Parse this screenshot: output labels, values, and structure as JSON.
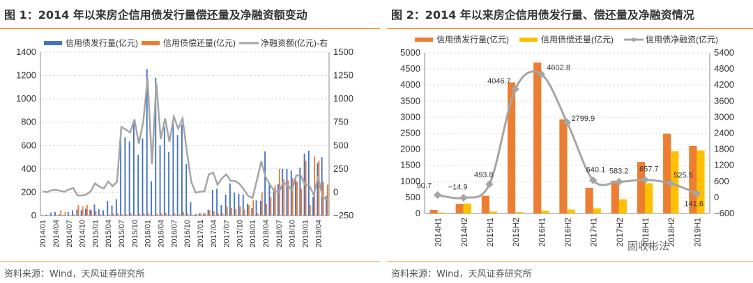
{
  "colors": {
    "issue1": "#4472c4",
    "repay1": "#ed7d31",
    "net": "#a5a5a5",
    "issue2": "#ed7d31",
    "repay2": "#ffc000",
    "accent": "#f0a050"
  },
  "watermark": "固收彬法",
  "chart_data": [
    {
      "type": "bar",
      "title": "图 1：2014 年以来房企信用债发行量偿还量及净融资额变动",
      "source": "资料来源：Wind，天风证券研究所",
      "tick_labels": [
        "2014/01",
        "2014/04",
        "2014/07",
        "2014/10",
        "2015/01",
        "2015/04",
        "2015/07",
        "2015/10",
        "2016/01",
        "2016/04",
        "2016/07",
        "2016/10",
        "2017/01",
        "2017/04",
        "2017/07",
        "2017/10",
        "2018/01",
        "2018/04",
        "2018/07",
        "2018/10",
        "2019/01",
        "2019/04"
      ],
      "start": "2014/01",
      "months": 66,
      "ylim": [
        0,
        1400
      ],
      "yticks": [
        0,
        200,
        400,
        600,
        800,
        1000,
        1200,
        1400
      ],
      "y2lim": [
        -250,
        1500
      ],
      "y2ticks": [
        -250,
        0,
        250,
        500,
        750,
        1000,
        1250,
        1500
      ],
      "series": [
        {
          "name": "信用债发行量(亿元)",
          "type": "bar",
          "axis": "left",
          "values": [
            5,
            8,
            25,
            30,
            10,
            5,
            30,
            45,
            50,
            45,
            60,
            50,
            95,
            55,
            45,
            125,
            85,
            140,
            690,
            670,
            635,
            800,
            520,
            660,
            1255,
            295,
            1180,
            600,
            760,
            545,
            790,
            690,
            780,
            440,
            115,
            10,
            20,
            20,
            50,
            220,
            230,
            90,
            180,
            275,
            195,
            185,
            180,
            100,
            65,
            130,
            125,
            550,
            280,
            230,
            270,
            400,
            400,
            385,
            330,
            410,
            530,
            555,
            160,
            450,
            500,
            170
          ]
        },
        {
          "name": "信用债偿还量(亿元)",
          "type": "bar",
          "axis": "left",
          "values": [
            0,
            0,
            0,
            5,
            45,
            30,
            0,
            10,
            90,
            80,
            90,
            45,
            35,
            10,
            5,
            10,
            20,
            20,
            10,
            10,
            20,
            5,
            15,
            20,
            20,
            5,
            15,
            20,
            25,
            5,
            20,
            10,
            30,
            20,
            5,
            15,
            20,
            20,
            45,
            35,
            15,
            20,
            75,
            65,
            55,
            80,
            50,
            90,
            130,
            20,
            200,
            100,
            160,
            260,
            400,
            310,
            300,
            320,
            290,
            230,
            470,
            90,
            505,
            470,
            290,
            265
          ]
        },
        {
          "name": "净融资额(亿元)-右",
          "type": "line",
          "axis": "right",
          "values": [
            10,
            0,
            20,
            25,
            15,
            5,
            30,
            45,
            -35,
            -35,
            -25,
            10,
            95,
            60,
            40,
            115,
            65,
            110,
            700,
            670,
            640,
            780,
            520,
            750,
            1220,
            300,
            1170,
            570,
            790,
            540,
            810,
            680,
            790,
            430,
            110,
            -5,
            5,
            10,
            190,
            210,
            80,
            150,
            190,
            120,
            120,
            90,
            30,
            -40,
            -60,
            130,
            330,
            160,
            80,
            10,
            0,
            100,
            80,
            20,
            180,
            180,
            80,
            70,
            -30,
            170,
            -50,
            -80
          ]
        }
      ]
    },
    {
      "type": "bar",
      "title": "图 2：2014 年以来房企信用债发行量、偿还量及净融资情况",
      "source": "资料来源：Wind，天风证券研究所",
      "categories": [
        "2014H1",
        "2014H2",
        "2015H1",
        "2015H2",
        "2016H1",
        "2016H2",
        "2017H1",
        "2017H2",
        "2018H1",
        "2018H2",
        "2019H1"
      ],
      "ylim": [
        0,
        5000
      ],
      "yticks": [
        0,
        500,
        1000,
        1500,
        2000,
        2500,
        3000,
        3500,
        4000,
        4500,
        5000
      ],
      "y2lim": [
        -600,
        5400
      ],
      "y2ticks": [
        -600,
        0,
        600,
        1200,
        1800,
        2400,
        3000,
        3600,
        4200,
        4800,
        5400
      ],
      "series": [
        {
          "name": "信用债发行量(亿元)",
          "type": "bar",
          "axis": "left",
          "values": [
            110,
            300,
            550,
            4080,
            4700,
            2930,
            800,
            1020,
            1600,
            2480,
            2100
          ]
        },
        {
          "name": "信用债偿还量(亿元)",
          "type": "bar",
          "axis": "left",
          "values": [
            30,
            310,
            60,
            40,
            90,
            120,
            160,
            440,
            940,
            1940,
            1960
          ]
        },
        {
          "name": "信用债净融资(亿元)",
          "type": "line",
          "axis": "right",
          "values": [
            90.7,
            -14.9,
            493.8,
            4046.7,
            4602.8,
            2799.9,
            640.1,
            583.2,
            657.7,
            525.5,
            141.6
          ],
          "labels": [
            "90.7",
            "−14.9",
            "493.8",
            "4046.7",
            "4602.8",
            "2799.9",
            "640.1",
            "583.2",
            "657.7",
            "525.5",
            "141.6"
          ]
        }
      ]
    }
  ]
}
